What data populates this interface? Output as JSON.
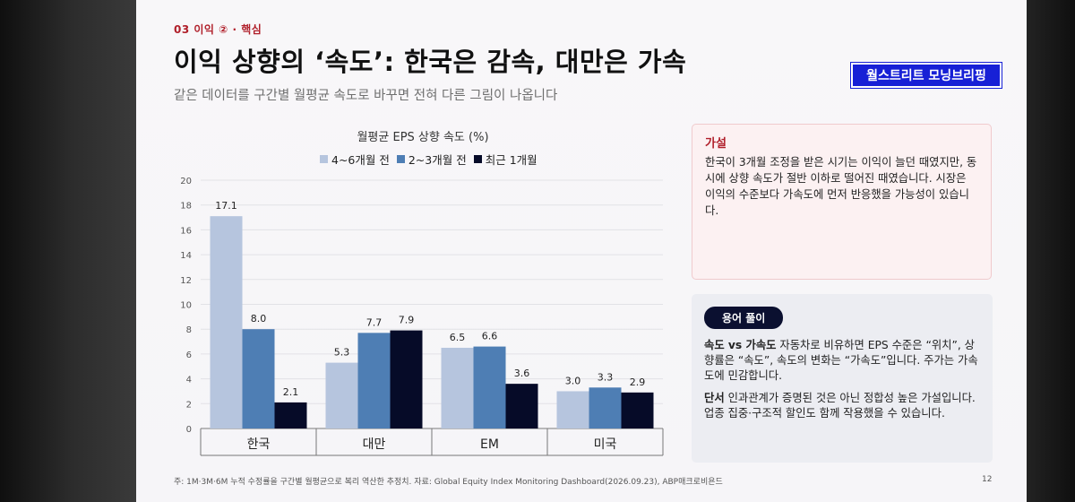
{
  "section": "03   이익  ② · 핵심",
  "title": "이익 상향의 ‘속도’: 한국은 감속, 대만은 가속",
  "subtitle": "같은 데이터를 구간별 월평균 속도로 바꾸면 전혀 다른 그림이 나옵니다",
  "badge": "월스트리트 모닝브리핑",
  "chart_data": {
    "type": "bar",
    "title": "월평균 EPS 상향 속도 (%)",
    "categories": [
      "한국",
      "대만",
      "EM",
      "미국"
    ],
    "series": [
      {
        "name": "4~6개월 전",
        "color": "#b6c5de",
        "values": [
          17.1,
          5.3,
          6.5,
          3.0
        ]
      },
      {
        "name": "2~3개월 전",
        "color": "#4e7eb4",
        "values": [
          8.0,
          7.7,
          6.6,
          3.3
        ]
      },
      {
        "name": "최근 1개월",
        "color": "#060b28",
        "values": [
          2.1,
          7.9,
          3.6,
          2.9
        ]
      }
    ],
    "value_labels": [
      [
        "17.1",
        "5.3",
        "6.5",
        "3.0"
      ],
      [
        "8.0",
        "7.7",
        "6.6",
        "3.3"
      ],
      [
        "2.1",
        "7.9",
        "3.6",
        "2.9"
      ]
    ],
    "ylim": [
      0,
      20
    ],
    "yticks": [
      "0",
      "2",
      "4",
      "6",
      "8",
      "10",
      "12",
      "14",
      "16",
      "18",
      "20"
    ],
    "grid": true,
    "legend_position": "top"
  },
  "hypothesis": {
    "heading": "가설",
    "body": "한국이 3개월 조정을 받은 시기는 이익이 늘던 때였지만, 동시에 상향 속도가 절반 이하로 떨어진 때였습니다. 시장은 이익의 수준보다 가속도에 먼저 반응했을 가능성이 있습니다."
  },
  "glossary": {
    "heading": "용어 풀이",
    "term1_label": "속도 vs 가속도",
    "term1_body": "자동차로 비유하면 EPS 수준은 “위치”, 상향률은 “속도”, 속도의 변화는 “가속도”입니다. 주가는 가속도에 민감합니다.",
    "term2_label": "단서",
    "term2_body": "인과관계가 증명된 것은 아닌 정합성 높은 가설입니다. 업종 집중·구조적 할인도 함께 작용했을 수 있습니다."
  },
  "footnote": "주: 1M·3M·6M 누적 수정률을 구간별 월평균으로 복리 역산한 추정치. 자료: Global Equity Index Monitoring Dashboard(2026.09.23), ABP매크로비욘드",
  "page_number": "12"
}
